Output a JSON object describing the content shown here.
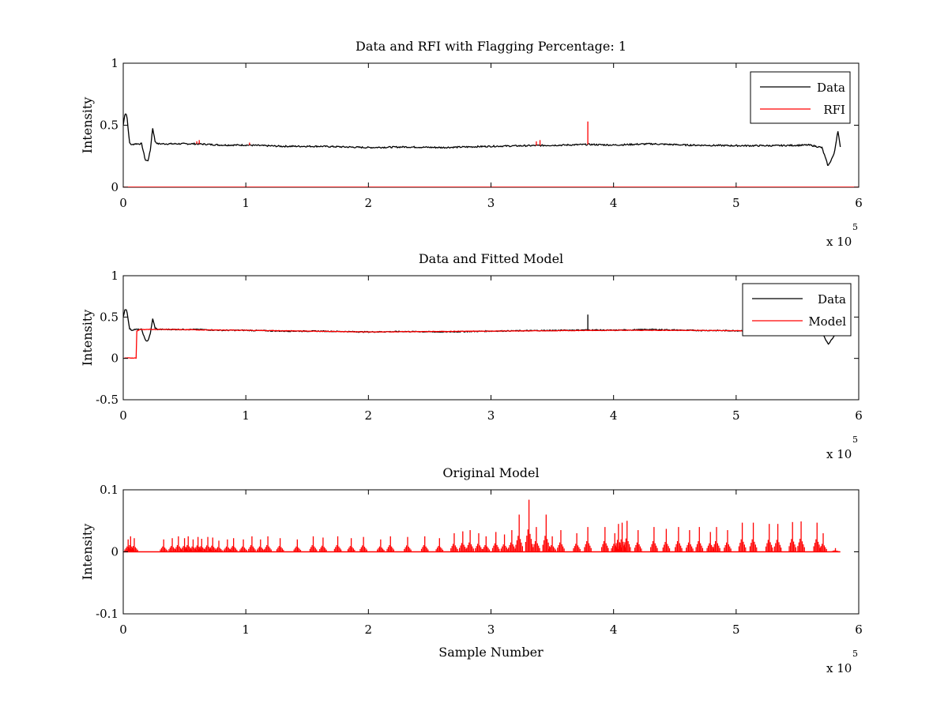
{
  "chart_data": [
    {
      "type": "line",
      "title": "Data and RFI with Flagging Percentage: 1",
      "xlabel": "",
      "ylabel": "Intensity",
      "xlim": [
        0,
        600000
      ],
      "ylim": [
        0,
        1
      ],
      "x_ticks": [
        "0",
        "1",
        "2",
        "3",
        "4",
        "5",
        "6"
      ],
      "x_tick_values": [
        0,
        100000,
        200000,
        300000,
        400000,
        500000,
        600000
      ],
      "y_ticks": [
        "0",
        "0.5",
        "1"
      ],
      "y_tick_values": [
        0,
        0.5,
        1
      ],
      "x_multiplier": {
        "base": "x 10",
        "exponent": "5"
      },
      "legend_position": "top-right",
      "grid": false,
      "series": [
        {
          "name": "Data",
          "color": "#000000",
          "x": [
            0,
            1500,
            3000,
            5000,
            7000,
            9000,
            15000,
            18000,
            20000,
            22000,
            24000,
            26000,
            28000,
            35000,
            60000,
            80000,
            100000,
            130000,
            160000,
            200000,
            230000,
            260000,
            300000,
            330000,
            360000,
            380000,
            400000,
            430000,
            460000,
            500000,
            530000,
            560000,
            570000,
            575000,
            580000,
            583000,
            585000
          ],
          "y": [
            0.5,
            0.6,
            0.58,
            0.36,
            0.34,
            0.35,
            0.35,
            0.22,
            0.21,
            0.29,
            0.48,
            0.37,
            0.35,
            0.35,
            0.35,
            0.34,
            0.34,
            0.33,
            0.33,
            0.32,
            0.325,
            0.32,
            0.33,
            0.335,
            0.34,
            0.345,
            0.34,
            0.35,
            0.34,
            0.335,
            0.335,
            0.34,
            0.32,
            0.17,
            0.27,
            0.46,
            0.32
          ]
        },
        {
          "name": "RFI",
          "color": "#ff0000",
          "spikes": [
            {
              "x": 60000,
              "y": 0.37
            },
            {
              "x": 62000,
              "y": 0.38
            },
            {
              "x": 103000,
              "y": 0.36
            },
            {
              "x": 337000,
              "y": 0.37
            },
            {
              "x": 340000,
              "y": 0.38
            },
            {
              "x": 379000,
              "y": 0.53
            }
          ]
        }
      ]
    },
    {
      "type": "line",
      "title": "Data and Fitted Model",
      "xlabel": "",
      "ylabel": "Intensity",
      "xlim": [
        0,
        600000
      ],
      "ylim": [
        -0.5,
        1
      ],
      "x_ticks": [
        "0",
        "1",
        "2",
        "3",
        "4",
        "5",
        "6"
      ],
      "x_tick_values": [
        0,
        100000,
        200000,
        300000,
        400000,
        500000,
        600000
      ],
      "y_ticks": [
        "-0.5",
        "0",
        "0.5",
        "1"
      ],
      "y_tick_values": [
        -0.5,
        0,
        0.5,
        1
      ],
      "x_multiplier": {
        "base": "x 10",
        "exponent": "5"
      },
      "legend_position": "top-right",
      "grid": false,
      "series": [
        {
          "name": "Data",
          "color": "#000000",
          "x": [
            0,
            1500,
            3000,
            5000,
            7000,
            9000,
            15000,
            18000,
            20000,
            22000,
            24000,
            26000,
            28000,
            35000,
            60000,
            80000,
            100000,
            130000,
            160000,
            200000,
            230000,
            260000,
            300000,
            330000,
            360000,
            380000,
            400000,
            430000,
            460000,
            500000,
            530000,
            560000,
            570000,
            575000,
            580000,
            583000,
            585000
          ],
          "y": [
            0.5,
            0.6,
            0.58,
            0.36,
            0.34,
            0.35,
            0.35,
            0.22,
            0.21,
            0.29,
            0.48,
            0.37,
            0.35,
            0.35,
            0.35,
            0.34,
            0.34,
            0.33,
            0.33,
            0.32,
            0.325,
            0.32,
            0.33,
            0.335,
            0.34,
            0.345,
            0.34,
            0.35,
            0.34,
            0.335,
            0.335,
            0.34,
            0.32,
            0.17,
            0.27,
            0.46,
            0.32
          ],
          "spikes": [
            {
              "x": 379000,
              "y": 0.53
            }
          ]
        },
        {
          "name": "Model",
          "color": "#ff0000",
          "x": [
            1000,
            11000,
            11000,
            14000,
            20000,
            40000,
            60000,
            100000,
            150000,
            200000,
            250000,
            300000,
            350000,
            400000,
            450000,
            500000,
            550000,
            570000
          ],
          "y": [
            0.005,
            0.005,
            0.33,
            0.35,
            0.35,
            0.35,
            0.345,
            0.34,
            0.33,
            0.32,
            0.325,
            0.33,
            0.335,
            0.34,
            0.34,
            0.335,
            0.335,
            0.34
          ]
        }
      ]
    },
    {
      "type": "line",
      "title": "Original Model",
      "xlabel": "Sample Number",
      "ylabel": "Intensity",
      "xlim": [
        0,
        600000
      ],
      "ylim": [
        -0.1,
        0.1
      ],
      "x_ticks": [
        "0",
        "1",
        "2",
        "3",
        "4",
        "5",
        "6"
      ],
      "x_tick_values": [
        0,
        100000,
        200000,
        300000,
        400000,
        500000,
        600000
      ],
      "y_ticks": [
        "-0.1",
        "0",
        "0.1"
      ],
      "y_tick_values": [
        -0.1,
        0,
        0.1
      ],
      "x_multiplier": {
        "base": "x 10",
        "exponent": "5"
      },
      "grid": false,
      "series": [
        {
          "color": "#ff0000",
          "x_end": 585000,
          "spikes": [
            {
              "x": 4000,
              "y": 0.02
            },
            {
              "x": 6000,
              "y": 0.025
            },
            {
              "x": 9000,
              "y": 0.022
            },
            {
              "x": 33000,
              "y": 0.02
            },
            {
              "x": 40000,
              "y": 0.022
            },
            {
              "x": 45000,
              "y": 0.025
            },
            {
              "x": 50000,
              "y": 0.022
            },
            {
              "x": 53000,
              "y": 0.025
            },
            {
              "x": 57000,
              "y": 0.02
            },
            {
              "x": 61000,
              "y": 0.024
            },
            {
              "x": 64000,
              "y": 0.021
            },
            {
              "x": 69000,
              "y": 0.024
            },
            {
              "x": 73000,
              "y": 0.023
            },
            {
              "x": 78000,
              "y": 0.018
            },
            {
              "x": 85000,
              "y": 0.02
            },
            {
              "x": 90000,
              "y": 0.022
            },
            {
              "x": 98000,
              "y": 0.02
            },
            {
              "x": 105000,
              "y": 0.025
            },
            {
              "x": 112000,
              "y": 0.02
            },
            {
              "x": 118000,
              "y": 0.025
            },
            {
              "x": 128000,
              "y": 0.022
            },
            {
              "x": 142000,
              "y": 0.02
            },
            {
              "x": 155000,
              "y": 0.025
            },
            {
              "x": 163000,
              "y": 0.023
            },
            {
              "x": 175000,
              "y": 0.025
            },
            {
              "x": 186000,
              "y": 0.022
            },
            {
              "x": 196000,
              "y": 0.024
            },
            {
              "x": 210000,
              "y": 0.02
            },
            {
              "x": 218000,
              "y": 0.025
            },
            {
              "x": 232000,
              "y": 0.024
            },
            {
              "x": 246000,
              "y": 0.025
            },
            {
              "x": 258000,
              "y": 0.022
            },
            {
              "x": 270000,
              "y": 0.03
            },
            {
              "x": 277000,
              "y": 0.033
            },
            {
              "x": 283000,
              "y": 0.035
            },
            {
              "x": 290000,
              "y": 0.03
            },
            {
              "x": 296000,
              "y": 0.025
            },
            {
              "x": 304000,
              "y": 0.032
            },
            {
              "x": 311000,
              "y": 0.028
            },
            {
              "x": 317000,
              "y": 0.035
            },
            {
              "x": 323000,
              "y": 0.06
            },
            {
              "x": 331000,
              "y": 0.084
            },
            {
              "x": 337000,
              "y": 0.04
            },
            {
              "x": 345000,
              "y": 0.06
            },
            {
              "x": 350000,
              "y": 0.025
            },
            {
              "x": 357000,
              "y": 0.035
            },
            {
              "x": 370000,
              "y": 0.03
            },
            {
              "x": 379000,
              "y": 0.04
            },
            {
              "x": 393000,
              "y": 0.04
            },
            {
              "x": 401000,
              "y": 0.03
            },
            {
              "x": 404000,
              "y": 0.045
            },
            {
              "x": 407000,
              "y": 0.047
            },
            {
              "x": 411000,
              "y": 0.05
            },
            {
              "x": 420000,
              "y": 0.035
            },
            {
              "x": 433000,
              "y": 0.04
            },
            {
              "x": 443000,
              "y": 0.037
            },
            {
              "x": 453000,
              "y": 0.04
            },
            {
              "x": 462000,
              "y": 0.035
            },
            {
              "x": 470000,
              "y": 0.04
            },
            {
              "x": 479000,
              "y": 0.032
            },
            {
              "x": 484000,
              "y": 0.04
            },
            {
              "x": 493000,
              "y": 0.035
            },
            {
              "x": 505000,
              "y": 0.047
            },
            {
              "x": 514000,
              "y": 0.047
            },
            {
              "x": 527000,
              "y": 0.045
            },
            {
              "x": 534000,
              "y": 0.045
            },
            {
              "x": 546000,
              "y": 0.048
            },
            {
              "x": 553000,
              "y": 0.049
            },
            {
              "x": 566000,
              "y": 0.047
            },
            {
              "x": 571000,
              "y": 0.03
            },
            {
              "x": 581000,
              "y": 0.006
            }
          ]
        }
      ]
    }
  ]
}
